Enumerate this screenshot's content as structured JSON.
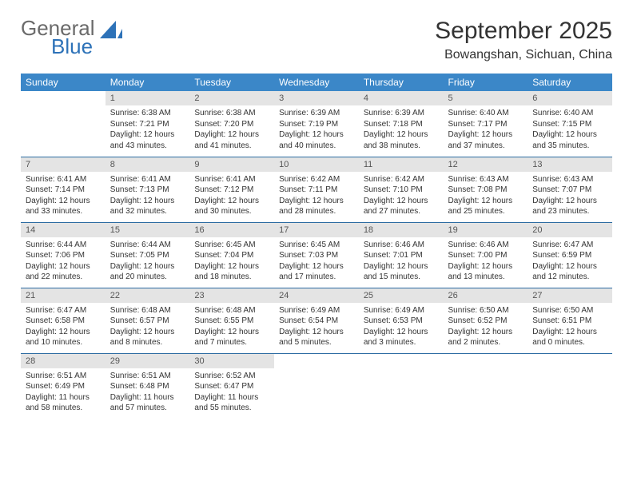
{
  "logo": {
    "word1": "General",
    "word2": "Blue"
  },
  "title": {
    "month": "September 2025",
    "location": "Bowangshan, Sichuan, China"
  },
  "colors": {
    "header_bg": "#3b87c8",
    "header_text": "#ffffff",
    "row_divider": "#2d6ca2",
    "daynum_bg": "#e4e4e4",
    "logo_gray": "#6a6a6a",
    "logo_blue": "#2d72b8",
    "sail_fill": "#2d72b8"
  },
  "daysOfWeek": [
    "Sunday",
    "Monday",
    "Tuesday",
    "Wednesday",
    "Thursday",
    "Friday",
    "Saturday"
  ],
  "weeks": [
    [
      {
        "n": "",
        "sr": "",
        "ss": "",
        "dl": ""
      },
      {
        "n": "1",
        "sr": "Sunrise: 6:38 AM",
        "ss": "Sunset: 7:21 PM",
        "dl": "Daylight: 12 hours and 43 minutes."
      },
      {
        "n": "2",
        "sr": "Sunrise: 6:38 AM",
        "ss": "Sunset: 7:20 PM",
        "dl": "Daylight: 12 hours and 41 minutes."
      },
      {
        "n": "3",
        "sr": "Sunrise: 6:39 AM",
        "ss": "Sunset: 7:19 PM",
        "dl": "Daylight: 12 hours and 40 minutes."
      },
      {
        "n": "4",
        "sr": "Sunrise: 6:39 AM",
        "ss": "Sunset: 7:18 PM",
        "dl": "Daylight: 12 hours and 38 minutes."
      },
      {
        "n": "5",
        "sr": "Sunrise: 6:40 AM",
        "ss": "Sunset: 7:17 PM",
        "dl": "Daylight: 12 hours and 37 minutes."
      },
      {
        "n": "6",
        "sr": "Sunrise: 6:40 AM",
        "ss": "Sunset: 7:15 PM",
        "dl": "Daylight: 12 hours and 35 minutes."
      }
    ],
    [
      {
        "n": "7",
        "sr": "Sunrise: 6:41 AM",
        "ss": "Sunset: 7:14 PM",
        "dl": "Daylight: 12 hours and 33 minutes."
      },
      {
        "n": "8",
        "sr": "Sunrise: 6:41 AM",
        "ss": "Sunset: 7:13 PM",
        "dl": "Daylight: 12 hours and 32 minutes."
      },
      {
        "n": "9",
        "sr": "Sunrise: 6:41 AM",
        "ss": "Sunset: 7:12 PM",
        "dl": "Daylight: 12 hours and 30 minutes."
      },
      {
        "n": "10",
        "sr": "Sunrise: 6:42 AM",
        "ss": "Sunset: 7:11 PM",
        "dl": "Daylight: 12 hours and 28 minutes."
      },
      {
        "n": "11",
        "sr": "Sunrise: 6:42 AM",
        "ss": "Sunset: 7:10 PM",
        "dl": "Daylight: 12 hours and 27 minutes."
      },
      {
        "n": "12",
        "sr": "Sunrise: 6:43 AM",
        "ss": "Sunset: 7:08 PM",
        "dl": "Daylight: 12 hours and 25 minutes."
      },
      {
        "n": "13",
        "sr": "Sunrise: 6:43 AM",
        "ss": "Sunset: 7:07 PM",
        "dl": "Daylight: 12 hours and 23 minutes."
      }
    ],
    [
      {
        "n": "14",
        "sr": "Sunrise: 6:44 AM",
        "ss": "Sunset: 7:06 PM",
        "dl": "Daylight: 12 hours and 22 minutes."
      },
      {
        "n": "15",
        "sr": "Sunrise: 6:44 AM",
        "ss": "Sunset: 7:05 PM",
        "dl": "Daylight: 12 hours and 20 minutes."
      },
      {
        "n": "16",
        "sr": "Sunrise: 6:45 AM",
        "ss": "Sunset: 7:04 PM",
        "dl": "Daylight: 12 hours and 18 minutes."
      },
      {
        "n": "17",
        "sr": "Sunrise: 6:45 AM",
        "ss": "Sunset: 7:03 PM",
        "dl": "Daylight: 12 hours and 17 minutes."
      },
      {
        "n": "18",
        "sr": "Sunrise: 6:46 AM",
        "ss": "Sunset: 7:01 PM",
        "dl": "Daylight: 12 hours and 15 minutes."
      },
      {
        "n": "19",
        "sr": "Sunrise: 6:46 AM",
        "ss": "Sunset: 7:00 PM",
        "dl": "Daylight: 12 hours and 13 minutes."
      },
      {
        "n": "20",
        "sr": "Sunrise: 6:47 AM",
        "ss": "Sunset: 6:59 PM",
        "dl": "Daylight: 12 hours and 12 minutes."
      }
    ],
    [
      {
        "n": "21",
        "sr": "Sunrise: 6:47 AM",
        "ss": "Sunset: 6:58 PM",
        "dl": "Daylight: 12 hours and 10 minutes."
      },
      {
        "n": "22",
        "sr": "Sunrise: 6:48 AM",
        "ss": "Sunset: 6:57 PM",
        "dl": "Daylight: 12 hours and 8 minutes."
      },
      {
        "n": "23",
        "sr": "Sunrise: 6:48 AM",
        "ss": "Sunset: 6:55 PM",
        "dl": "Daylight: 12 hours and 7 minutes."
      },
      {
        "n": "24",
        "sr": "Sunrise: 6:49 AM",
        "ss": "Sunset: 6:54 PM",
        "dl": "Daylight: 12 hours and 5 minutes."
      },
      {
        "n": "25",
        "sr": "Sunrise: 6:49 AM",
        "ss": "Sunset: 6:53 PM",
        "dl": "Daylight: 12 hours and 3 minutes."
      },
      {
        "n": "26",
        "sr": "Sunrise: 6:50 AM",
        "ss": "Sunset: 6:52 PM",
        "dl": "Daylight: 12 hours and 2 minutes."
      },
      {
        "n": "27",
        "sr": "Sunrise: 6:50 AM",
        "ss": "Sunset: 6:51 PM",
        "dl": "Daylight: 12 hours and 0 minutes."
      }
    ],
    [
      {
        "n": "28",
        "sr": "Sunrise: 6:51 AM",
        "ss": "Sunset: 6:49 PM",
        "dl": "Daylight: 11 hours and 58 minutes."
      },
      {
        "n": "29",
        "sr": "Sunrise: 6:51 AM",
        "ss": "Sunset: 6:48 PM",
        "dl": "Daylight: 11 hours and 57 minutes."
      },
      {
        "n": "30",
        "sr": "Sunrise: 6:52 AM",
        "ss": "Sunset: 6:47 PM",
        "dl": "Daylight: 11 hours and 55 minutes."
      },
      {
        "n": "",
        "sr": "",
        "ss": "",
        "dl": ""
      },
      {
        "n": "",
        "sr": "",
        "ss": "",
        "dl": ""
      },
      {
        "n": "",
        "sr": "",
        "ss": "",
        "dl": ""
      },
      {
        "n": "",
        "sr": "",
        "ss": "",
        "dl": ""
      }
    ]
  ]
}
